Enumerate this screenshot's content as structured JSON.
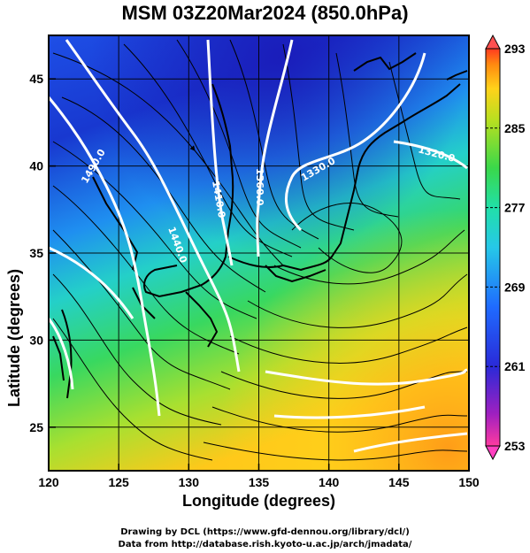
{
  "title": "MSM 03Z20Mar2024 (850.0hPa)",
  "xlabel": "Longitude (degrees)",
  "ylabel": "Latitude  (degrees)",
  "credits": [
    "Drawing by DCL (https://www.gfd-dennou.org/library/dcl/)",
    "Data from http://database.rish.kyoto-u.ac.jp/arch/jmadata/"
  ],
  "map": {
    "lon_range": [
      120,
      150
    ],
    "lat_range": [
      22.5,
      47.5
    ],
    "x_ticks": [
      "120",
      "125",
      "130",
      "135",
      "140",
      "145",
      "150"
    ],
    "y_ticks": [
      "25",
      "30",
      "35",
      "40",
      "45"
    ],
    "grid": true
  },
  "colorbar": {
    "range": [
      253,
      293
    ],
    "ticks": [
      "293",
      "285",
      "277",
      "269",
      "261",
      "253"
    ],
    "colors": [
      "#ff3aa0",
      "#a020c0",
      "#2a2ad8",
      "#1f6bff",
      "#26c8e8",
      "#21e0a8",
      "#3ad84a",
      "#b8e020",
      "#ffd21a",
      "#ff8a10",
      "#ff3a20"
    ]
  },
  "contours": [
    {
      "label": "1490.0"
    },
    {
      "label": "1440.0"
    },
    {
      "label": "1410.0"
    },
    {
      "label": "1360.0"
    },
    {
      "label": "1330.0"
    },
    {
      "label": "1320.0"
    }
  ],
  "colors": {
    "contour": "#ffffff",
    "streamline": "#000000",
    "coast": "#000000"
  }
}
